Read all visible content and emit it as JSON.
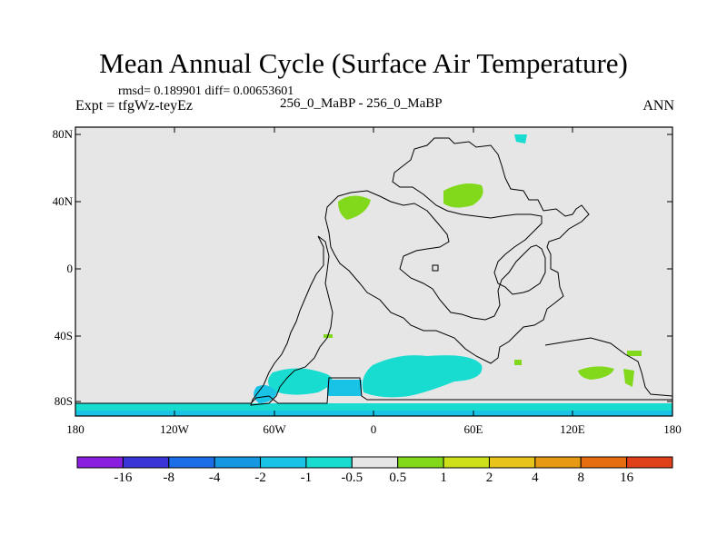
{
  "title": "Mean Annual Cycle (Surface Air Temperature)",
  "stats": "rmsd= 0.189901 diff= 0.00653601",
  "experiment": "Expt = tfgWz-teyEz",
  "case_label": "256_0_MaBP - 256_0_MaBP",
  "season": "ANN",
  "map": {
    "background": "#e6e6e6",
    "coastline_color": "#000000",
    "x_ticks": [
      "180",
      "120W",
      "60W",
      "0",
      "60E",
      "120E",
      "180"
    ],
    "y_ticks": [
      "80N",
      "40N",
      "0",
      "40S",
      "80S"
    ]
  },
  "colorbar": {
    "colors": [
      "#8a1fe0",
      "#3a35d6",
      "#1c6ee8",
      "#1598e0",
      "#19c3e6",
      "#19dcd0",
      "#e6e6e6",
      "#82d91b",
      "#cde01a",
      "#e6c419",
      "#e69a14",
      "#e66e0f",
      "#e0401a"
    ],
    "labels": [
      "-16",
      "-8",
      "-4",
      "-2",
      "-1",
      "-0.5",
      "0.5",
      "1",
      "2",
      "4",
      "8",
      "16"
    ]
  }
}
